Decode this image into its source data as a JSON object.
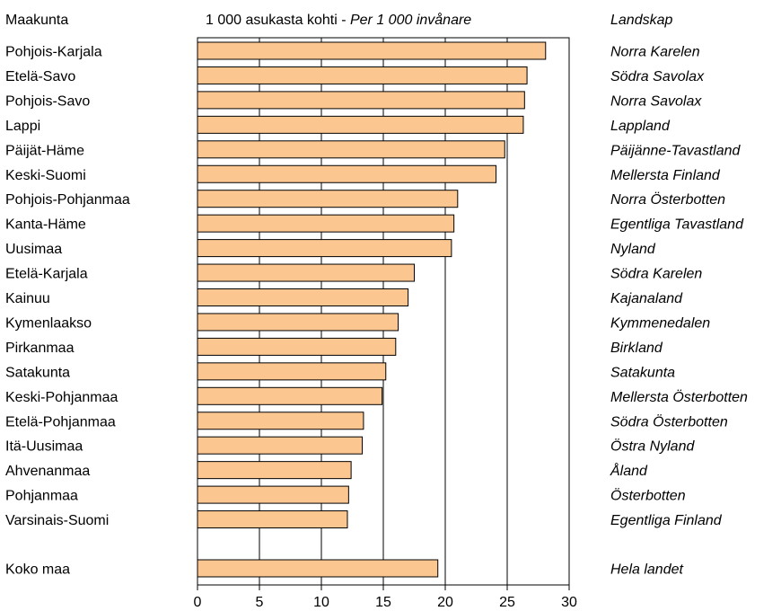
{
  "chart_data": {
    "type": "bar",
    "orientation": "horizontal",
    "header": {
      "left": "Maakunta",
      "center_plain": "1 000 asukasta kohti - ",
      "center_italic": "Per 1 000 invånare",
      "right": "Landskap"
    },
    "categories": [
      "Pohjois-Karjala",
      "Etelä-Savo",
      "Pohjois-Savo",
      "Lappi",
      "Päijät-Häme",
      "Keski-Suomi",
      "Pohjois-Pohjanmaa",
      "Kanta-Häme",
      "Uusimaa",
      "Etelä-Karjala",
      "Kainuu",
      "Kymenlaakso",
      "Pirkanmaa",
      "Satakunta",
      "Keski-Pohjanmaa",
      "Etelä-Pohjanmaa",
      "Itä-Uusimaa",
      "Ahvenanmaa",
      "Pohjanmaa",
      "Varsinais-Suomi"
    ],
    "categories_sv": [
      "Norra Karelen",
      "Södra Savolax",
      "Norra Savolax",
      "Lappland",
      "Päijänne-Tavastland",
      "Mellersta Finland",
      "Norra Österbotten",
      "Egentliga Tavastland",
      "Nyland",
      "Södra Karelen",
      "Kajanaland",
      "Kymmenedalen",
      "Birkland",
      "Satakunta",
      "Mellersta Österbotten",
      "Södra Österbotten",
      "Östra Nyland",
      "Åland",
      "Österbotten",
      "Egentliga Finland"
    ],
    "values": [
      28.1,
      26.6,
      26.4,
      26.3,
      24.8,
      24.1,
      21.0,
      20.7,
      20.5,
      17.5,
      17.0,
      16.2,
      16.0,
      15.2,
      14.9,
      13.4,
      13.3,
      12.4,
      12.2,
      12.1
    ],
    "total": {
      "label": "Koko maa",
      "label_sv": "Hela landet",
      "value": 19.4
    },
    "xlim": [
      0,
      30
    ],
    "xticks": [
      0,
      5,
      10,
      15,
      20,
      25,
      30
    ],
    "grid": true,
    "colors": {
      "bar_fill": "#fcc690",
      "bar_stroke": "#000000",
      "grid": "#000000"
    }
  }
}
